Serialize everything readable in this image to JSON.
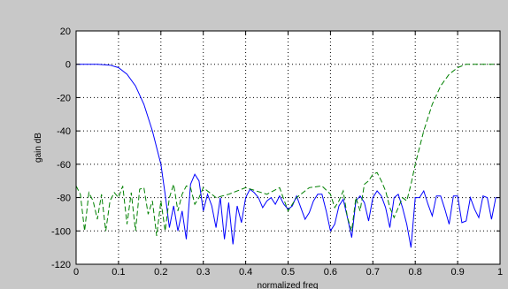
{
  "chart_data": {
    "type": "line",
    "title": "",
    "xlabel": "normalized freq",
    "ylabel": "gain dB",
    "xlim": [
      0,
      1
    ],
    "ylim": [
      -120,
      20
    ],
    "xticks": [
      0,
      0.1,
      0.2,
      0.3,
      0.4,
      0.5,
      0.6,
      0.7,
      0.8,
      0.9,
      1
    ],
    "xtick_labels": [
      "0",
      "0.1",
      "0.2",
      "0.3",
      "0.4",
      "0.5",
      "0.6",
      "0.7",
      "0.8",
      "0.9",
      "1"
    ],
    "yticks": [
      20,
      0,
      -20,
      -40,
      -60,
      -80,
      -100,
      -120
    ],
    "ytick_labels": [
      "20",
      "0",
      "-20",
      "-40",
      "-60",
      "-80",
      "-100",
      "-120"
    ],
    "grid": true,
    "grid_style": "dotted",
    "series": [
      {
        "color": "#0000ff",
        "dash": "solid",
        "x": [
          0,
          0.05,
          0.08,
          0.1,
          0.12,
          0.14,
          0.16,
          0.18,
          0.2,
          0.21,
          0.22,
          0.23,
          0.24,
          0.25,
          0.26,
          0.27,
          0.28,
          0.29,
          0.3,
          0.31,
          0.32,
          0.33,
          0.34,
          0.35,
          0.36,
          0.37,
          0.38,
          0.39,
          0.4,
          0.41,
          0.42,
          0.43,
          0.44,
          0.45,
          0.46,
          0.47,
          0.48,
          0.49,
          0.5,
          0.51,
          0.52,
          0.53,
          0.54,
          0.55,
          0.56,
          0.57,
          0.58,
          0.59,
          0.6,
          0.61,
          0.62,
          0.63,
          0.64,
          0.65,
          0.66,
          0.67,
          0.68,
          0.69,
          0.7,
          0.71,
          0.72,
          0.73,
          0.74,
          0.75,
          0.76,
          0.77,
          0.78,
          0.79,
          0.8,
          0.81,
          0.82,
          0.83,
          0.84,
          0.85,
          0.86,
          0.87,
          0.88,
          0.89,
          0.9,
          0.91,
          0.92,
          0.93,
          0.94,
          0.95,
          0.96,
          0.97,
          0.98,
          0.99,
          1.0
        ],
        "y": [
          0,
          0,
          -0.5,
          -2,
          -6,
          -13,
          -24,
          -40,
          -60,
          -78,
          -98,
          -85,
          -100,
          -88,
          -105,
          -72,
          -66,
          -70,
          -88,
          -78,
          -85,
          -98,
          -80,
          -105,
          -83,
          -108,
          -85,
          -95,
          -80,
          -75,
          -77,
          -80,
          -86,
          -82,
          -80,
          -84,
          -79,
          -84,
          -87,
          -85,
          -79,
          -86,
          -93,
          -89,
          -82,
          -78,
          -78,
          -88,
          -100,
          -96,
          -85,
          -81,
          -92,
          -104,
          -82,
          -79,
          -83,
          -94,
          -80,
          -76,
          -79,
          -86,
          -98,
          -80,
          -78,
          -86,
          -96,
          -110,
          -80,
          -80,
          -76,
          -84,
          -91,
          -79,
          -79,
          -87,
          -96,
          -79,
          -79,
          -95,
          -94,
          -80,
          -87,
          -92,
          -79,
          -80,
          -93,
          -80,
          -80
        ]
      },
      {
        "color": "#008000",
        "dash": "dashed",
        "x": [
          0,
          0.01,
          0.02,
          0.03,
          0.04,
          0.05,
          0.06,
          0.07,
          0.08,
          0.09,
          0.1,
          0.11,
          0.12,
          0.13,
          0.14,
          0.15,
          0.16,
          0.17,
          0.18,
          0.19,
          0.2,
          0.21,
          0.22,
          0.23,
          0.24,
          0.25,
          0.26,
          0.27,
          0.28,
          0.29,
          0.3,
          0.33,
          0.36,
          0.4,
          0.45,
          0.48,
          0.5,
          0.52,
          0.55,
          0.58,
          0.6,
          0.61,
          0.62,
          0.63,
          0.64,
          0.65,
          0.66,
          0.67,
          0.68,
          0.69,
          0.7,
          0.71,
          0.72,
          0.73,
          0.74,
          0.75,
          0.76,
          0.77,
          0.78,
          0.79,
          0.8,
          0.82,
          0.84,
          0.86,
          0.88,
          0.9,
          0.92,
          0.94,
          0.96,
          0.98,
          1.0
        ],
        "y": [
          -73,
          -78,
          -100,
          -77,
          -82,
          -93,
          -78,
          -100,
          -82,
          -77,
          -80,
          -73,
          -96,
          -77,
          -100,
          -75,
          -74,
          -90,
          -82,
          -103,
          -82,
          -100,
          -80,
          -72,
          -88,
          -78,
          -73,
          -74,
          -84,
          -80,
          -74,
          -80,
          -78,
          -74,
          -78,
          -74,
          -88,
          -80,
          -74,
          -73,
          -78,
          -86,
          -82,
          -76,
          -92,
          -100,
          -80,
          -88,
          -72,
          -70,
          -66,
          -65,
          -70,
          -76,
          -86,
          -92,
          -86,
          -80,
          -82,
          -72,
          -60,
          -40,
          -24,
          -13,
          -6,
          -2,
          0,
          0,
          0,
          0,
          0
        ]
      }
    ]
  }
}
